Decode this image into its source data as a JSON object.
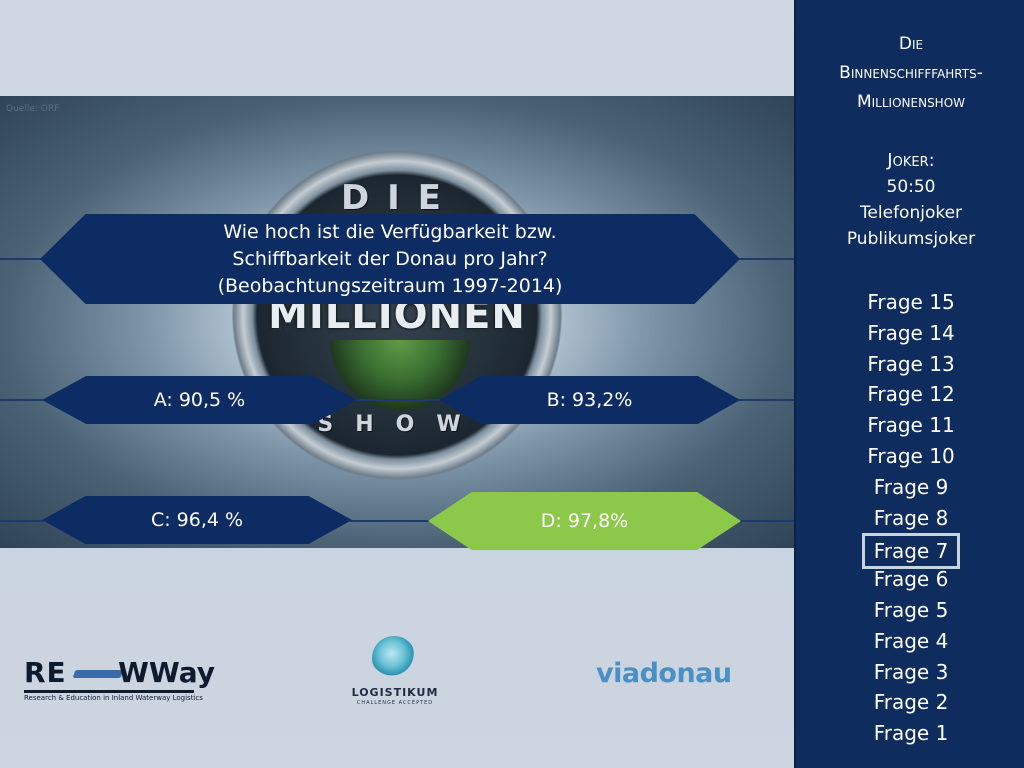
{
  "source_label": "Quelle: ORF",
  "backdrop": {
    "logo_top": "DIE",
    "logo_middle": "MILLIONEN",
    "logo_bottom": "SHOW"
  },
  "question": {
    "lines": [
      "Wie hoch ist die Verfügbarkeit bzw.",
      "Schiffbarkeit der Donau pro Jahr?",
      "(Beobachtungszeitraum 1997-2014)"
    ]
  },
  "answers": {
    "a": "A: 90,5 %",
    "b": "B: 93,2%",
    "c": "C: 96,4 %",
    "d": "D: 97,8%"
  },
  "colors": {
    "panel_blue": "#0e2c64",
    "correct_green": "#8cc94b",
    "sidebar_blue": "#0e2c5e"
  },
  "sidebar": {
    "title": [
      "Die",
      "Binnenschifffahrts-",
      "Millionenshow"
    ],
    "joker_heading": "Joker:",
    "jokers": [
      "50:50",
      "Telefonjoker",
      "Publikumsjoker"
    ],
    "questions": [
      "Frage 15",
      "Frage 14",
      "Frage 13",
      "Frage 12",
      "Frage 11",
      "Frage 10",
      "Frage 9",
      "Frage 8",
      "Frage 7",
      "Frage 6",
      "Frage 5",
      "Frage 4",
      "Frage 3",
      "Frage 2",
      "Frage 1"
    ],
    "current_question": "Frage 7"
  },
  "footer": {
    "reww_left": "RE",
    "reww_right": "WWay",
    "reww_tagline": "Research & Education in Inland Waterway Logistics",
    "logistikum_name": "LOGISTIKUM",
    "logistikum_tagline": "CHALLENGE ACCEPTED",
    "viadonau": "viadonau"
  }
}
